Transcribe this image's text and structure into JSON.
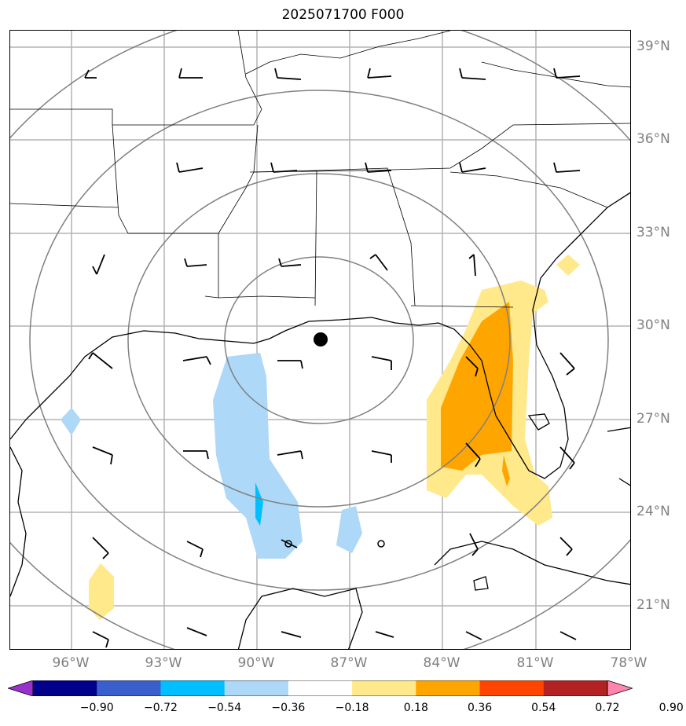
{
  "title": "2025071700 F000",
  "lat_labels": [
    "39°N",
    "36°N",
    "33°N",
    "30°N",
    "27°N",
    "24°N",
    "21°N"
  ],
  "lon_labels": [
    "96°W",
    "93°W",
    "90°W",
    "87°W",
    "84°W",
    "81°W",
    "78°W"
  ],
  "colorbar": {
    "ticks": [
      "−0.90",
      "−0.72",
      "−0.54",
      "−0.36",
      "−0.18",
      "0.18",
      "0.36",
      "0.54",
      "0.72",
      "0.90"
    ],
    "colors": [
      "#9932cc",
      "#00008b",
      "#3a5fcd",
      "#00bfff",
      "#add8f7",
      "#ffffff",
      "#ffe98a",
      "#ffa500",
      "#ff4500",
      "#b22222",
      "#ff85b0"
    ]
  },
  "storm_center_marker": {
    "lat": 29.5,
    "lon": -88.0
  },
  "range_rings": "concentric range rings around storm center",
  "shaded_fields": {
    "positive_0_18_to_0_36": "#ffe98a",
    "positive_0_36_to_0_54": "#ffa500",
    "negative_0_18_to_0_36": "#add8f7",
    "negative_0_36_to_0_54": "#00bfff"
  }
}
